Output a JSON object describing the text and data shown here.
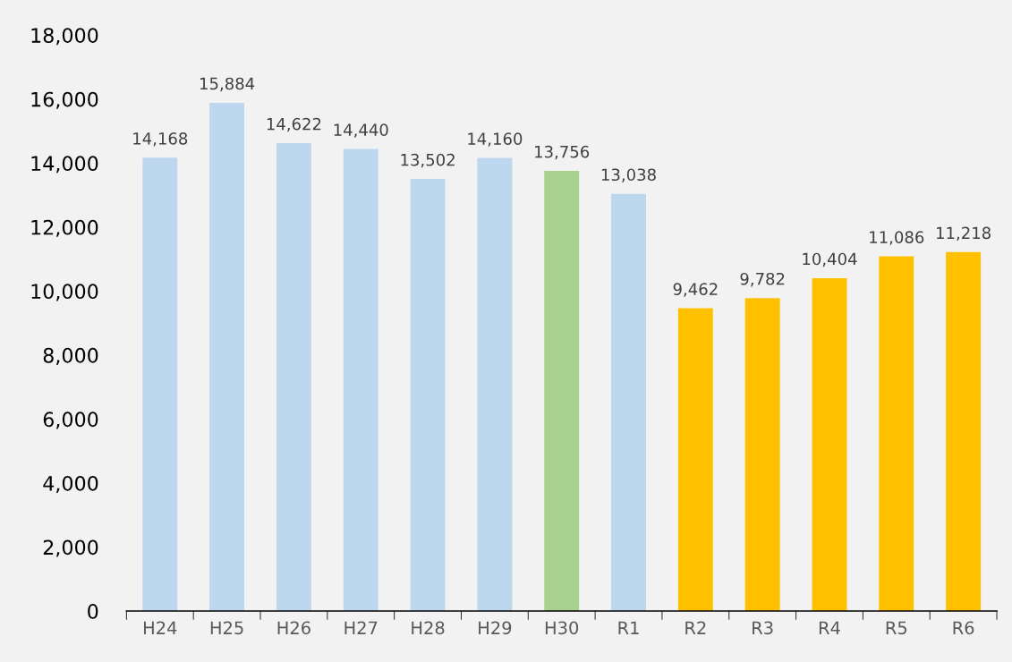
{
  "chart_data": {
    "type": "bar",
    "categories": [
      "H24",
      "H25",
      "H26",
      "H27",
      "H28",
      "H29",
      "H30",
      "R1",
      "R2",
      "R3",
      "R4",
      "R5",
      "R6"
    ],
    "values": [
      14168,
      15884,
      14622,
      14440,
      13502,
      14160,
      13756,
      13038,
      9462,
      9782,
      10404,
      11086,
      11218
    ],
    "colors": [
      "#bdd7ee",
      "#bdd7ee",
      "#bdd7ee",
      "#bdd7ee",
      "#bdd7ee",
      "#bdd7ee",
      "#a9d18e",
      "#bdd7ee",
      "#ffc000",
      "#ffc000",
      "#ffc000",
      "#ffc000",
      "#ffc000"
    ],
    "ylim": [
      0,
      18000
    ],
    "yticks": [
      {
        "value": 0,
        "label": "0"
      },
      {
        "value": 2000,
        "label": "2,000"
      },
      {
        "value": 4000,
        "label": "4,000"
      },
      {
        "value": 6000,
        "label": "6,000"
      },
      {
        "value": 8000,
        "label": "8,000"
      },
      {
        "value": 10000,
        "label": "10,000"
      },
      {
        "value": 12000,
        "label": "12,000"
      },
      {
        "value": 14000,
        "label": "14,000"
      },
      {
        "value": 16000,
        "label": "16,000"
      },
      {
        "value": 18000,
        "label": "18,000"
      }
    ],
    "value_labels": [
      "14,168",
      "15,884",
      "14,622",
      "14,440",
      "13,502",
      "14,160",
      "13,756",
      "13,038",
      "9,462",
      "9,782",
      "10,404",
      "11,086",
      "11,218"
    ],
    "grid": false,
    "legend": false
  }
}
